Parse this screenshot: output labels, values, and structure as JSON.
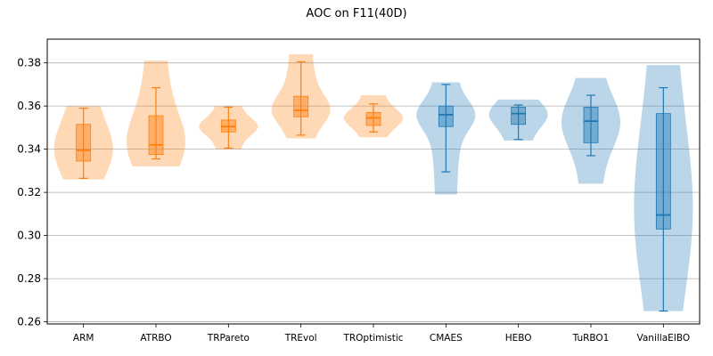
{
  "chart_data": {
    "type": "violin",
    "title": "AOC on F11(40D)",
    "xlabel": "",
    "ylabel": "",
    "ylim": [
      0.259,
      0.391
    ],
    "yticks": [
      0.26,
      0.28,
      0.3,
      0.32,
      0.34,
      0.36,
      0.38
    ],
    "ytick_labels": [
      "0.26",
      "0.28",
      "0.30",
      "0.32",
      "0.34",
      "0.36",
      "0.38"
    ],
    "grid": "horizontal",
    "colors": {
      "group_a": "#ff7f0e",
      "group_b": "#1f77b4"
    },
    "categories": [
      "ARM",
      "ATRBO",
      "TRPareto",
      "TREvol",
      "TROptimistic",
      "CMAES",
      "HEBO",
      "TuRBO1",
      "VanillaEIBO"
    ],
    "series": [
      {
        "category": "ARM",
        "color_group": "group_a",
        "min": 0.3265,
        "q1": 0.3345,
        "median": 0.3395,
        "q3": 0.3515,
        "max": 0.359,
        "violin_range": [
          0.326,
          0.36
        ]
      },
      {
        "category": "ATRBO",
        "color_group": "group_a",
        "min": 0.3355,
        "q1": 0.3375,
        "median": 0.342,
        "q3": 0.3555,
        "max": 0.3685,
        "violin_range": [
          0.332,
          0.381
        ]
      },
      {
        "category": "TRPareto",
        "color_group": "group_a",
        "min": 0.3405,
        "q1": 0.348,
        "median": 0.3505,
        "q3": 0.3535,
        "max": 0.3595,
        "violin_range": [
          0.34,
          0.36
        ]
      },
      {
        "category": "TREvol",
        "color_group": "group_a",
        "min": 0.3465,
        "q1": 0.355,
        "median": 0.358,
        "q3": 0.3645,
        "max": 0.3805,
        "violin_range": [
          0.345,
          0.384
        ]
      },
      {
        "category": "TROptimistic",
        "color_group": "group_a",
        "min": 0.348,
        "q1": 0.351,
        "median": 0.3545,
        "q3": 0.357,
        "max": 0.361,
        "violin_range": [
          0.3455,
          0.365
        ]
      },
      {
        "category": "CMAES",
        "color_group": "group_b",
        "min": 0.3295,
        "q1": 0.3505,
        "median": 0.356,
        "q3": 0.36,
        "max": 0.37,
        "violin_range": [
          0.319,
          0.371
        ]
      },
      {
        "category": "HEBO",
        "color_group": "group_b",
        "min": 0.3445,
        "q1": 0.3515,
        "median": 0.3565,
        "q3": 0.3595,
        "max": 0.3605,
        "violin_range": [
          0.344,
          0.363
        ]
      },
      {
        "category": "TuRBO1",
        "color_group": "group_b",
        "min": 0.337,
        "q1": 0.343,
        "median": 0.353,
        "q3": 0.3595,
        "max": 0.365,
        "violin_range": [
          0.324,
          0.373
        ]
      },
      {
        "category": "VanillaEIBO",
        "color_group": "group_b",
        "min": 0.265,
        "q1": 0.303,
        "median": 0.3095,
        "q3": 0.3565,
        "max": 0.3685,
        "violin_range": [
          0.265,
          0.379
        ]
      }
    ]
  }
}
